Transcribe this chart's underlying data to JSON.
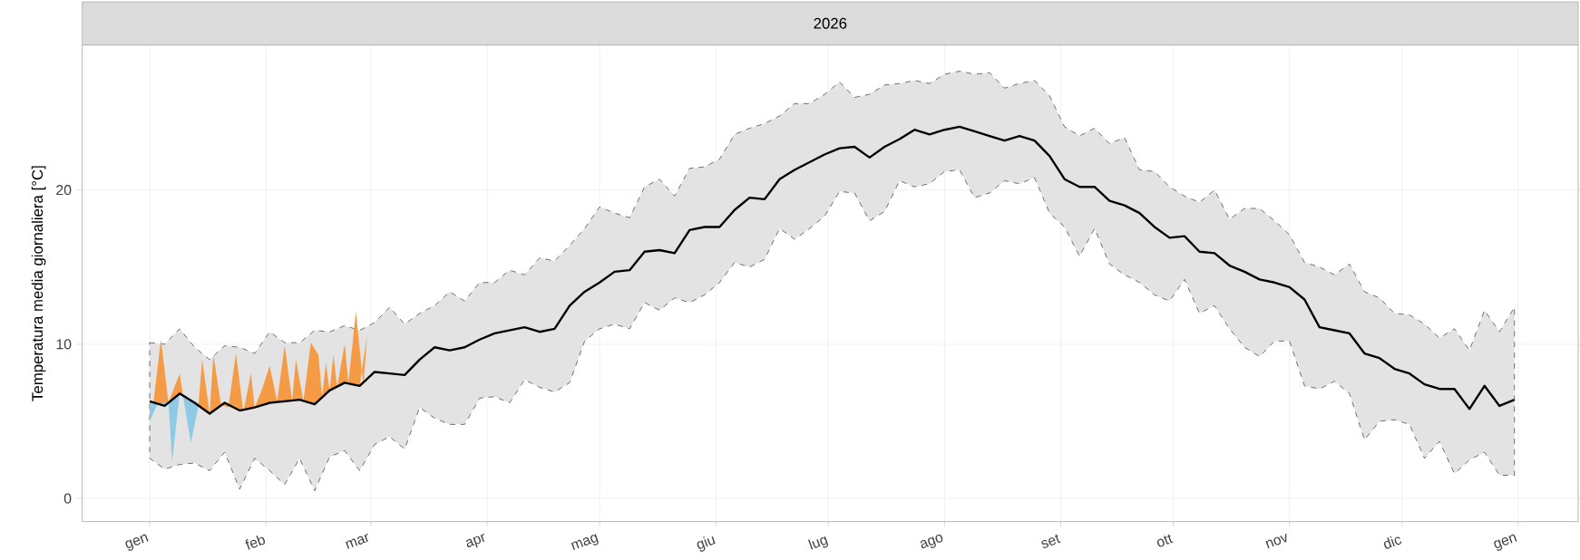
{
  "chart_data": {
    "type": "line",
    "title": "2026",
    "ylabel": "Temperatura media giornaliera [°C]",
    "xlim": [
      "2025-12-14",
      "2027-01-17"
    ],
    "ylim": [
      -1.5,
      29.4
    ],
    "xticks": [
      {
        "value": "2026-01-01",
        "label": "gen"
      },
      {
        "value": "2026-02-01",
        "label": "feb"
      },
      {
        "value": "2026-03-01",
        "label": "mar"
      },
      {
        "value": "2026-04-01",
        "label": "apr"
      },
      {
        "value": "2026-05-01",
        "label": "mag"
      },
      {
        "value": "2026-06-01",
        "label": "giu"
      },
      {
        "value": "2026-07-01",
        "label": "lug"
      },
      {
        "value": "2026-08-01",
        "label": "ago"
      },
      {
        "value": "2026-09-01",
        "label": "set"
      },
      {
        "value": "2026-10-01",
        "label": "ott"
      },
      {
        "value": "2026-11-01",
        "label": "nov"
      },
      {
        "value": "2026-12-01",
        "label": "dic"
      },
      {
        "value": "2027-01-01",
        "label": "gen"
      }
    ],
    "yticks": [
      0,
      10,
      20
    ],
    "grid": true,
    "series": [
      {
        "color": "#000000",
        "x": [
          "2026-01-01",
          "2026-01-05",
          "2026-01-09",
          "2026-01-13",
          "2026-01-17",
          "2026-01-21",
          "2026-01-25",
          "2026-01-29",
          "2026-02-02",
          "2026-02-06",
          "2026-02-10",
          "2026-02-14",
          "2026-02-18",
          "2026-02-22",
          "2026-02-26",
          "2026-03-02",
          "2026-03-06",
          "2026-03-10",
          "2026-03-14",
          "2026-03-18",
          "2026-03-22",
          "2026-03-26",
          "2026-03-30",
          "2026-04-03",
          "2026-04-07",
          "2026-04-11",
          "2026-04-15",
          "2026-04-19",
          "2026-04-23",
          "2026-04-27",
          "2026-05-01",
          "2026-05-05",
          "2026-05-09",
          "2026-05-13",
          "2026-05-17",
          "2026-05-21",
          "2026-05-25",
          "2026-05-29",
          "2026-06-02",
          "2026-06-06",
          "2026-06-10",
          "2026-06-14",
          "2026-06-18",
          "2026-06-22",
          "2026-06-26",
          "2026-06-30",
          "2026-07-04",
          "2026-07-08",
          "2026-07-12",
          "2026-07-16",
          "2026-07-20",
          "2026-07-24",
          "2026-07-28",
          "2026-08-01",
          "2026-08-05",
          "2026-08-09",
          "2026-08-13",
          "2026-08-17",
          "2026-08-21",
          "2026-08-25",
          "2026-08-29",
          "2026-09-02",
          "2026-09-06",
          "2026-09-10",
          "2026-09-14",
          "2026-09-18",
          "2026-09-22",
          "2026-09-26",
          "2026-09-30",
          "2026-10-04",
          "2026-10-08",
          "2026-10-12",
          "2026-10-16",
          "2026-10-20",
          "2026-10-24",
          "2026-10-28",
          "2026-11-01",
          "2026-11-05",
          "2026-11-09",
          "2026-11-13",
          "2026-11-17",
          "2026-11-21",
          "2026-11-25",
          "2026-11-29",
          "2026-12-03",
          "2026-12-07",
          "2026-12-11",
          "2026-12-15",
          "2026-12-19",
          "2026-12-23",
          "2026-12-27",
          "2026-12-31"
        ],
        "values": [
          6.3,
          6.0,
          6.8,
          6.2,
          5.5,
          6.2,
          5.7,
          5.9,
          6.2,
          6.3,
          6.4,
          6.1,
          7.0,
          7.5,
          7.3,
          8.2,
          8.1,
          8.0,
          9.0,
          9.8,
          9.6,
          9.8,
          10.3,
          10.7,
          10.9,
          11.1,
          10.8,
          11.0,
          12.5,
          13.4,
          14.0,
          14.7,
          14.8,
          16.0,
          16.1,
          15.9,
          17.4,
          17.6,
          17.6,
          18.7,
          19.5,
          19.4,
          20.7,
          21.3,
          21.8,
          22.3,
          22.7,
          22.8,
          22.1,
          22.8,
          23.3,
          23.9,
          23.6,
          23.9,
          24.1,
          23.8,
          23.5,
          23.2,
          23.5,
          23.2,
          22.2,
          20.7,
          20.2,
          20.2,
          19.3,
          19.0,
          18.5,
          17.6,
          16.9,
          17.0,
          16.0,
          15.9,
          15.1,
          14.7,
          14.2,
          14.0,
          13.7,
          12.9,
          11.1,
          10.9,
          10.7,
          9.4,
          9.1,
          8.4,
          8.1,
          7.4,
          7.1,
          7.1,
          5.8,
          7.3,
          6.0,
          6.4
        ],
        "lower": [
          2.6,
          1.9,
          2.2,
          2.3,
          1.8,
          3.0,
          0.6,
          2.6,
          1.8,
          0.9,
          2.6,
          0.5,
          2.7,
          3.1,
          1.8,
          3.5,
          4.0,
          3.2,
          5.9,
          5.2,
          4.8,
          4.8,
          6.5,
          6.6,
          6.2,
          7.7,
          7.2,
          6.9,
          7.5,
          10.2,
          11.0,
          11.3,
          11.0,
          12.7,
          12.2,
          13.0,
          12.7,
          13.2,
          14.0,
          15.3,
          15.0,
          15.5,
          17.5,
          16.8,
          17.5,
          18.3,
          19.9,
          19.8,
          18.0,
          18.6,
          20.6,
          20.2,
          20.4,
          21.2,
          21.3,
          19.5,
          19.8,
          20.6,
          20.4,
          20.8,
          18.5,
          17.6,
          15.7,
          17.5,
          15.2,
          14.5,
          14.0,
          13.2,
          12.8,
          14.2,
          12.0,
          12.5,
          11.0,
          9.8,
          9.2,
          10.2,
          10.2,
          7.3,
          7.1,
          7.6,
          6.8,
          3.8,
          5.0,
          5.1,
          4.8,
          2.6,
          3.7,
          1.6,
          2.5,
          3.0,
          1.5,
          1.5
        ],
        "upper": [
          10.1,
          10.0,
          11.0,
          9.8,
          9.0,
          9.9,
          9.8,
          9.4,
          10.8,
          10.1,
          10.1,
          10.9,
          10.8,
          11.2,
          10.9,
          11.4,
          12.4,
          11.3,
          12.0,
          12.5,
          13.4,
          12.8,
          14.0,
          14.0,
          14.8,
          14.5,
          15.6,
          15.4,
          16.4,
          17.5,
          18.9,
          18.5,
          18.2,
          20.2,
          20.7,
          19.6,
          21.4,
          21.5,
          22.0,
          23.6,
          24.0,
          24.3,
          24.8,
          25.6,
          25.6,
          26.2,
          27.0,
          26.0,
          26.2,
          26.8,
          26.9,
          27.1,
          26.9,
          27.5,
          27.7,
          27.5,
          27.6,
          26.6,
          26.9,
          27.1,
          26.1,
          24.1,
          23.5,
          24.0,
          23.0,
          23.4,
          21.3,
          21.2,
          20.2,
          19.6,
          19.2,
          20.0,
          18.1,
          18.8,
          18.8,
          18.0,
          17.1,
          15.3,
          15.0,
          14.5,
          15.2,
          13.4,
          13.0,
          12.0,
          11.9,
          11.3,
          10.4,
          11.0,
          9.6,
          12.2,
          10.8,
          12.4
        ]
      },
      {
        "type": "area",
        "color": "#f59a45",
        "x": [
          "2026-01-01",
          "2026-01-02",
          "2026-01-04",
          "2026-01-06",
          "2026-01-09",
          "2026-01-10",
          "2026-01-14",
          "2026-01-15",
          "2026-01-17",
          "2026-01-18",
          "2026-01-20",
          "2026-01-22",
          "2026-01-24",
          "2026-01-26",
          "2026-01-28",
          "2026-01-29",
          "2026-01-31",
          "2026-02-02",
          "2026-02-04",
          "2026-02-06",
          "2026-02-08",
          "2026-02-09",
          "2026-02-11",
          "2026-02-13",
          "2026-02-15",
          "2026-02-16",
          "2026-02-17",
          "2026-02-18",
          "2026-02-19",
          "2026-02-20",
          "2026-02-22",
          "2026-02-23",
          "2026-02-25",
          "2026-02-27",
          "2026-02-28"
        ],
        "values": [
          6.3,
          6.2,
          10.3,
          6.2,
          8.1,
          6.5,
          6.0,
          9.0,
          5.5,
          9.3,
          6.1,
          5.9,
          9.4,
          5.6,
          8.1,
          5.9,
          7.1,
          8.6,
          6.3,
          9.9,
          6.3,
          9.0,
          6.3,
          10.1,
          9.3,
          6.6,
          8.8,
          7.0,
          9.3,
          7.2,
          10.0,
          7.5,
          12.1,
          7.3,
          10.6
        ]
      },
      {
        "type": "area",
        "color": "#8ec9e6",
        "x": [
          "2026-01-01",
          "2026-01-03",
          "2026-01-06",
          "2026-01-07",
          "2026-01-09",
          "2026-01-10",
          "2026-01-12",
          "2026-01-14"
        ],
        "values": [
          5.0,
          6.1,
          6.3,
          2.4,
          6.8,
          6.5,
          3.6,
          6.0
        ]
      }
    ]
  }
}
